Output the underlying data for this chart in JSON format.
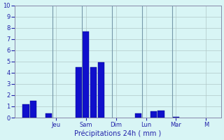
{
  "title": "",
  "xlabel": "Précipitations 24h ( mm )",
  "ylabel": "",
  "background_color": "#d8f5f5",
  "grid_color": "#b0c8c8",
  "bar_color": "#1010cc",
  "bar_edge_color": "#000080",
  "ylim": [
    0,
    10
  ],
  "yticks": [
    0,
    1,
    2,
    3,
    4,
    5,
    6,
    7,
    8,
    9,
    10
  ],
  "bar_positions": [
    0,
    1,
    3,
    7,
    8,
    9,
    10,
    15,
    17,
    18,
    20
  ],
  "bar_heights": [
    1.2,
    1.5,
    0.4,
    4.5,
    7.7,
    4.5,
    4.9,
    0.35,
    0.55,
    0.65,
    0.05
  ],
  "day_ticks": [
    4,
    8,
    12,
    16,
    20,
    24
  ],
  "day_labels": [
    "Jeu",
    "Sam",
    "Dim",
    "Lun",
    "Mar",
    "M"
  ],
  "bar_width": 0.85
}
